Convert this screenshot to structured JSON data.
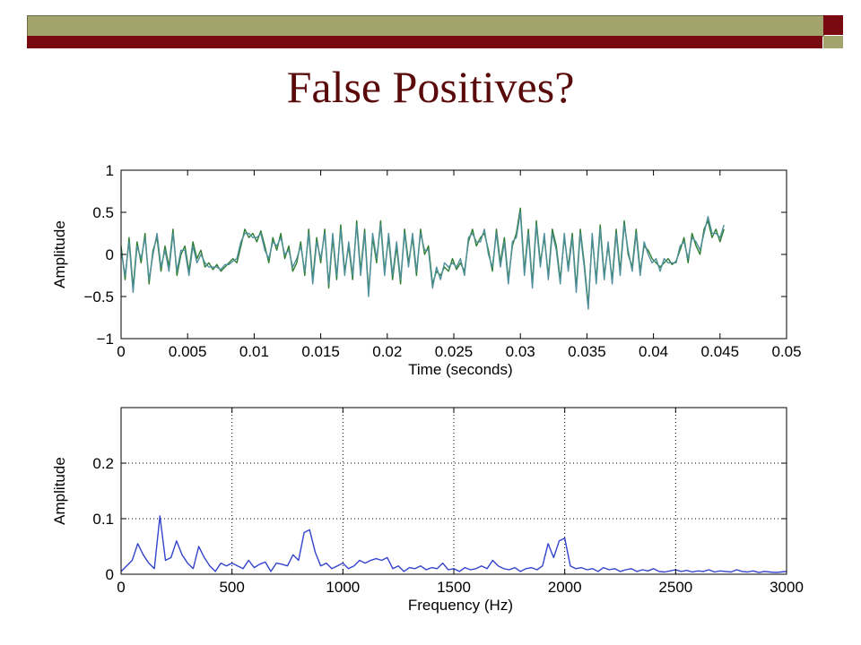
{
  "slide": {
    "title": "False Positives?",
    "colors": {
      "olive": "#a3a36d",
      "maroon": "#7a0a12",
      "title": "#5a0a0a"
    }
  },
  "chart_data": [
    {
      "type": "line",
      "title": "",
      "xlabel": "Time (seconds)",
      "ylabel": "Amplitude",
      "xlim": [
        0,
        0.05
      ],
      "ylim": [
        -1,
        1
      ],
      "xticks": [
        0,
        0.005,
        0.01,
        0.015,
        0.02,
        0.025,
        0.03,
        0.035,
        0.04,
        0.045,
        0.05
      ],
      "xtick_labels": [
        "0",
        "0.005",
        "0.01",
        "0.015",
        "0.02",
        "0.025",
        "0.03",
        "0.035",
        "0.04",
        "0.045",
        "0.05"
      ],
      "yticks": [
        -1,
        -0.5,
        0,
        0.5,
        1
      ],
      "ytick_labels": [
        "−1",
        "−0.5",
        "0",
        "0.5",
        "1"
      ],
      "grid": false,
      "series": [
        {
          "color": "#2e7d32",
          "x": [
            0,
            0.0003,
            0.0006,
            0.0009,
            0.0012,
            0.0015,
            0.0018,
            0.0021,
            0.0024,
            0.0027,
            0.003,
            0.0033,
            0.0036,
            0.0039,
            0.0042,
            0.0045,
            0.0048,
            0.0051,
            0.0054,
            0.0057,
            0.006,
            0.0063,
            0.0066,
            0.0069,
            0.0072,
            0.0075,
            0.0078,
            0.0081,
            0.0084,
            0.0087,
            0.009,
            0.0093,
            0.0096,
            0.0099,
            0.0102,
            0.0105,
            0.0108,
            0.0111,
            0.0114,
            0.0117,
            0.012,
            0.0123,
            0.0126,
            0.0129,
            0.0132,
            0.0135,
            0.0138,
            0.0141,
            0.0144,
            0.0147,
            0.015,
            0.0153,
            0.0156,
            0.0159,
            0.0162,
            0.0165,
            0.0168,
            0.0171,
            0.0174,
            0.0177,
            0.018,
            0.0183,
            0.0186,
            0.0189,
            0.0192,
            0.0195,
            0.0198,
            0.0201,
            0.0204,
            0.0207,
            0.021,
            0.0213,
            0.0216,
            0.0219,
            0.0222,
            0.0225,
            0.0228,
            0.0231,
            0.0234,
            0.0237,
            0.024,
            0.0243,
            0.0246,
            0.0249,
            0.0252,
            0.0255,
            0.0258,
            0.0261,
            0.0264,
            0.0267,
            0.027,
            0.0273,
            0.0276,
            0.0279,
            0.0282,
            0.0285,
            0.0288,
            0.0291,
            0.0294,
            0.0297,
            0.03,
            0.0303,
            0.0306,
            0.0309,
            0.0312,
            0.0315,
            0.0318,
            0.0321,
            0.0324,
            0.0327,
            0.033,
            0.0333,
            0.0336,
            0.0339,
            0.0342,
            0.0345,
            0.0348,
            0.0351,
            0.0354,
            0.0357,
            0.036,
            0.0363,
            0.0366,
            0.0369,
            0.0372,
            0.0375,
            0.0378,
            0.0381,
            0.0384,
            0.0387,
            0.039,
            0.0393,
            0.0396,
            0.0399,
            0.0402,
            0.0405,
            0.0408,
            0.0411,
            0.0414,
            0.0417,
            0.042,
            0.0423,
            0.0426,
            0.0429,
            0.0432,
            0.0435,
            0.0438,
            0.0441,
            0.0444,
            0.0447,
            0.045,
            0.0453
          ],
          "y": [
            0.1,
            -0.3,
            0.2,
            -0.4,
            0.15,
            -0.1,
            0.25,
            -0.35,
            0.05,
            0.2,
            -0.2,
            0.1,
            -0.15,
            0.3,
            -0.25,
            0.0,
            0.1,
            -0.2,
            0.15,
            -0.05,
            0.05,
            -0.15,
            -0.1,
            -0.18,
            -0.12,
            -0.2,
            -0.15,
            -0.1,
            -0.05,
            -0.1,
            0.1,
            0.3,
            0.2,
            0.25,
            0.15,
            0.28,
            0.1,
            -0.1,
            0.2,
            0.05,
            0.25,
            -0.05,
            0.1,
            -0.2,
            -0.1,
            0.15,
            -0.25,
            0.3,
            -0.3,
            0.2,
            -0.1,
            0.3,
            -0.4,
            0.2,
            -0.3,
            0.35,
            -0.2,
            0.1,
            -0.3,
            0.4,
            -0.2,
            0.3,
            -0.45,
            0.2,
            -0.1,
            0.4,
            -0.2,
            0.2,
            -0.3,
            0.1,
            -0.35,
            0.3,
            -0.1,
            0.2,
            -0.25,
            0.3,
            0.0,
            0.1,
            -0.35,
            -0.2,
            -0.25,
            -0.15,
            -0.2,
            -0.05,
            -0.18,
            -0.1,
            -0.2,
            0.15,
            0.3,
            0.1,
            0.2,
            0.25,
            0.05,
            -0.2,
            0.3,
            -0.1,
            0.2,
            -0.3,
            0.1,
            0.25,
            0.55,
            -0.2,
            0.3,
            -0.35,
            0.4,
            -0.1,
            0.2,
            -0.25,
            0.3,
            0.1,
            -0.3,
            0.2,
            -0.15,
            0.25,
            -0.4,
            0.3,
            -0.1,
            -0.6,
            0.2,
            -0.3,
            0.35,
            -0.25,
            0.1,
            -0.3,
            0.3,
            -0.2,
            0.4,
            0.0,
            -0.15,
            0.3,
            -0.2,
            0.1,
            0.05,
            -0.05,
            -0.1,
            -0.15,
            -0.1,
            -0.05,
            -0.12,
            -0.08,
            0.05,
            0.2,
            -0.1,
            0.25,
            0.1,
            0.0,
            0.3,
            0.4,
            0.2,
            0.3,
            0.15,
            0.3
          ]
        },
        {
          "color": "#4f8f9b",
          "x": [
            0,
            0.0003,
            0.0006,
            0.0009,
            0.0012,
            0.0015,
            0.0018,
            0.0021,
            0.0024,
            0.0027,
            0.003,
            0.0033,
            0.0036,
            0.0039,
            0.0042,
            0.0045,
            0.0048,
            0.0051,
            0.0054,
            0.0057,
            0.006,
            0.0063,
            0.0066,
            0.0069,
            0.0072,
            0.0075,
            0.0078,
            0.0081,
            0.0084,
            0.0087,
            0.009,
            0.0093,
            0.0096,
            0.0099,
            0.0102,
            0.0105,
            0.0108,
            0.0111,
            0.0114,
            0.0117,
            0.012,
            0.0123,
            0.0126,
            0.0129,
            0.0132,
            0.0135,
            0.0138,
            0.0141,
            0.0144,
            0.0147,
            0.015,
            0.0153,
            0.0156,
            0.0159,
            0.0162,
            0.0165,
            0.0168,
            0.0171,
            0.0174,
            0.0177,
            0.018,
            0.0183,
            0.0186,
            0.0189,
            0.0192,
            0.0195,
            0.0198,
            0.0201,
            0.0204,
            0.0207,
            0.021,
            0.0213,
            0.0216,
            0.0219,
            0.0222,
            0.0225,
            0.0228,
            0.0231,
            0.0234,
            0.0237,
            0.024,
            0.0243,
            0.0246,
            0.0249,
            0.0252,
            0.0255,
            0.0258,
            0.0261,
            0.0264,
            0.0267,
            0.027,
            0.0273,
            0.0276,
            0.0279,
            0.0282,
            0.0285,
            0.0288,
            0.0291,
            0.0294,
            0.0297,
            0.03,
            0.0303,
            0.0306,
            0.0309,
            0.0312,
            0.0315,
            0.0318,
            0.0321,
            0.0324,
            0.0327,
            0.033,
            0.0333,
            0.0336,
            0.0339,
            0.0342,
            0.0345,
            0.0348,
            0.0351,
            0.0354,
            0.0357,
            0.036,
            0.0363,
            0.0366,
            0.0369,
            0.0372,
            0.0375,
            0.0378,
            0.0381,
            0.0384,
            0.0387,
            0.039,
            0.0393,
            0.0396,
            0.0399,
            0.0402,
            0.0405,
            0.0408,
            0.0411,
            0.0414,
            0.0417,
            0.042,
            0.0423,
            0.0426,
            0.0429,
            0.0432,
            0.0435,
            0.0438,
            0.0441,
            0.0444,
            0.0447,
            0.045,
            0.0453
          ],
          "y": [
            0.05,
            -0.25,
            0.15,
            -0.45,
            0.1,
            -0.05,
            0.2,
            -0.3,
            0.0,
            0.25,
            -0.15,
            0.05,
            -0.2,
            0.25,
            -0.2,
            0.05,
            0.05,
            -0.25,
            0.1,
            -0.1,
            0.0,
            -0.1,
            -0.15,
            -0.15,
            -0.15,
            -0.18,
            -0.12,
            -0.12,
            -0.08,
            -0.05,
            0.15,
            0.25,
            0.25,
            0.2,
            0.2,
            0.25,
            0.05,
            -0.05,
            0.15,
            0.1,
            0.2,
            0.0,
            0.05,
            -0.15,
            -0.05,
            0.1,
            -0.2,
            0.25,
            -0.35,
            0.15,
            -0.05,
            0.25,
            -0.35,
            0.25,
            -0.25,
            0.3,
            -0.25,
            0.15,
            -0.25,
            0.35,
            -0.25,
            0.25,
            -0.5,
            0.25,
            -0.05,
            0.35,
            -0.25,
            0.25,
            -0.25,
            0.15,
            -0.3,
            0.25,
            -0.15,
            0.25,
            -0.2,
            0.25,
            0.05,
            0.05,
            -0.4,
            -0.15,
            -0.3,
            -0.1,
            -0.15,
            -0.1,
            -0.15,
            -0.05,
            -0.25,
            0.2,
            0.25,
            0.15,
            0.15,
            0.3,
            0.0,
            -0.15,
            0.25,
            -0.15,
            0.15,
            -0.35,
            0.15,
            0.2,
            0.5,
            -0.25,
            0.25,
            -0.4,
            0.35,
            -0.15,
            0.25,
            -0.3,
            0.25,
            0.05,
            -0.35,
            0.25,
            -0.2,
            0.2,
            -0.45,
            0.25,
            -0.15,
            -0.65,
            0.25,
            -0.35,
            0.3,
            -0.3,
            0.15,
            -0.35,
            0.25,
            -0.25,
            0.35,
            0.05,
            -0.2,
            0.25,
            -0.25,
            0.15,
            0.0,
            -0.1,
            -0.05,
            -0.2,
            -0.05,
            -0.1,
            -0.1,
            -0.1,
            0.1,
            0.15,
            -0.05,
            0.2,
            0.15,
            0.05,
            0.25,
            0.45,
            0.25,
            0.25,
            0.2,
            0.35
          ]
        }
      ]
    },
    {
      "type": "line",
      "title": "",
      "xlabel": "Frequency (Hz)",
      "ylabel": "Amplitude",
      "xlim": [
        0,
        3000
      ],
      "ylim": [
        0,
        0.3
      ],
      "xticks": [
        0,
        500,
        1000,
        1500,
        2000,
        2500,
        3000
      ],
      "xtick_labels": [
        "0",
        "500",
        "1000",
        "1500",
        "2000",
        "2500",
        "3000"
      ],
      "yticks": [
        0,
        0.1,
        0.2
      ],
      "ytick_labels": [
        "0",
        "0.1",
        "0.2"
      ],
      "grid": true,
      "series": [
        {
          "color": "#3344cc",
          "x": [
            0,
            25,
            50,
            75,
            100,
            125,
            150,
            175,
            200,
            225,
            250,
            275,
            300,
            325,
            350,
            375,
            400,
            425,
            450,
            475,
            500,
            525,
            550,
            575,
            600,
            625,
            650,
            675,
            700,
            725,
            750,
            775,
            800,
            825,
            850,
            875,
            900,
            925,
            950,
            975,
            1000,
            1025,
            1050,
            1075,
            1100,
            1125,
            1150,
            1175,
            1200,
            1225,
            1250,
            1275,
            1300,
            1325,
            1350,
            1375,
            1400,
            1425,
            1450,
            1475,
            1500,
            1525,
            1550,
            1575,
            1600,
            1625,
            1650,
            1675,
            1700,
            1725,
            1750,
            1775,
            1800,
            1825,
            1850,
            1875,
            1900,
            1925,
            1950,
            1975,
            2000,
            2025,
            2050,
            2075,
            2100,
            2125,
            2150,
            2175,
            2200,
            2225,
            2250,
            2275,
            2300,
            2325,
            2350,
            2375,
            2400,
            2425,
            2450,
            2475,
            2500,
            2525,
            2550,
            2575,
            2600,
            2625,
            2650,
            2675,
            2700,
            2725,
            2750,
            2775,
            2800,
            2825,
            2850,
            2875,
            2900,
            2925,
            2950,
            2975,
            3000
          ],
          "y": [
            0.005,
            0.015,
            0.025,
            0.055,
            0.035,
            0.02,
            0.01,
            0.105,
            0.025,
            0.03,
            0.06,
            0.035,
            0.02,
            0.01,
            0.05,
            0.03,
            0.015,
            0.005,
            0.02,
            0.015,
            0.02,
            0.015,
            0.01,
            0.025,
            0.012,
            0.018,
            0.022,
            0.005,
            0.02,
            0.018,
            0.015,
            0.035,
            0.025,
            0.075,
            0.08,
            0.04,
            0.015,
            0.02,
            0.01,
            0.015,
            0.02,
            0.01,
            0.015,
            0.025,
            0.02,
            0.025,
            0.028,
            0.025,
            0.03,
            0.01,
            0.015,
            0.005,
            0.012,
            0.01,
            0.015,
            0.008,
            0.012,
            0.01,
            0.02,
            0.008,
            0.01,
            0.005,
            0.012,
            0.008,
            0.01,
            0.015,
            0.01,
            0.025,
            0.015,
            0.01,
            0.008,
            0.012,
            0.005,
            0.01,
            0.012,
            0.008,
            0.015,
            0.055,
            0.03,
            0.06,
            0.065,
            0.015,
            0.01,
            0.012,
            0.008,
            0.01,
            0.005,
            0.012,
            0.008,
            0.01,
            0.005,
            0.008,
            0.01,
            0.005,
            0.008,
            0.006,
            0.01,
            0.005,
            0.004,
            0.006,
            0.008,
            0.005,
            0.007,
            0.004,
            0.006,
            0.005,
            0.008,
            0.004,
            0.006,
            0.005,
            0.004,
            0.008,
            0.005,
            0.004,
            0.006,
            0.003,
            0.005,
            0.004,
            0.003,
            0.004,
            0.005
          ]
        }
      ]
    }
  ]
}
